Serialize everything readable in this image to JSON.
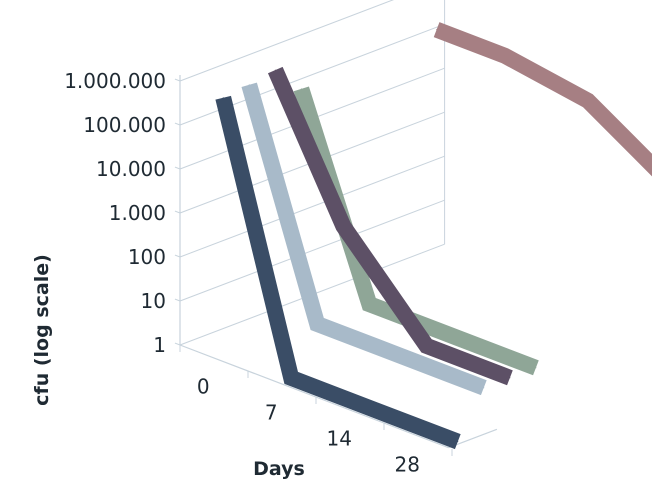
{
  "chart_data": {
    "type": "line",
    "subtype": "3d-ribbon",
    "ylabel": "cfu (log scale)",
    "xlabel": "Days",
    "yscale": "log",
    "ylim": [
      1,
      1000000
    ],
    "y_tick_labels": [
      "1.000.000",
      "100.000",
      "10.000",
      "1.000",
      "100",
      "10",
      "1"
    ],
    "x_tick_labels": [
      "0",
      "7",
      "14",
      "28"
    ],
    "x": [
      0,
      7,
      14,
      28
    ],
    "grid": true,
    "legend": "none",
    "series": [
      {
        "color": "#3a4d66",
        "values": [
          600000,
          1,
          1,
          1
        ]
      },
      {
        "color": "#a8bac9",
        "values": [
          700000,
          10,
          10,
          10
        ]
      },
      {
        "color": "#5d5066",
        "values": [
          900000,
          1000,
          10,
          10
        ]
      },
      {
        "color": "#8fa697",
        "values": [
          200000,
          10,
          10,
          10
        ]
      },
      {
        "color": "#a67f83",
        "values": [
          300000,
          300000,
          150000,
          10000
        ]
      }
    ]
  }
}
